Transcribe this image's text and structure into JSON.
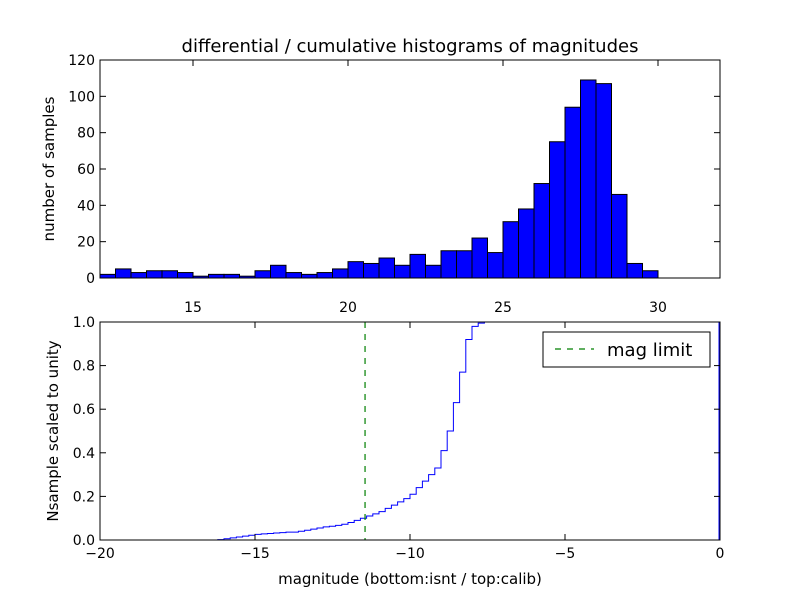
{
  "chart_data": [
    {
      "type": "bar",
      "title": "differential / cumulative histograms of magnitudes",
      "xlabel": "",
      "ylabel": "number of samples",
      "xlim": [
        12.0,
        32.0
      ],
      "ylim": [
        0,
        120
      ],
      "xticks": [
        "15",
        "20",
        "25",
        "30"
      ],
      "yticks": [
        "0",
        "20",
        "40",
        "60",
        "80",
        "100",
        "120"
      ],
      "bar_color": "#0000ff",
      "bin_width": 0.5,
      "bins": [
        12.0,
        12.5,
        13.0,
        13.5,
        14.0,
        14.5,
        15.0,
        15.5,
        16.0,
        16.5,
        17.0,
        17.5,
        18.0,
        18.5,
        19.0,
        19.5,
        20.0,
        20.5,
        21.0,
        21.5,
        22.0,
        22.5,
        23.0,
        23.5,
        24.0,
        24.5,
        25.0,
        25.5,
        26.0,
        26.5,
        27.0,
        27.5,
        28.0,
        28.5,
        29.0,
        29.5,
        30.0,
        30.5,
        31.0,
        31.5
      ],
      "values": [
        2,
        5,
        3,
        4,
        4,
        3,
        1,
        2,
        2,
        1,
        4,
        7,
        3,
        2,
        3,
        5,
        9,
        8,
        11,
        7,
        13,
        7,
        15,
        15,
        22,
        14,
        31,
        38,
        52,
        75,
        94,
        109,
        107,
        46,
        8,
        4,
        0,
        0,
        0,
        0
      ]
    },
    {
      "type": "line",
      "title": "",
      "xlabel": "magnitude (bottom:isnt / top:calib)",
      "ylabel": "Nsample scaled to unity",
      "xlim": [
        -20,
        0
      ],
      "ylim": [
        0.0,
        1.0
      ],
      "xticks": [
        "−20",
        "−15",
        "−10",
        "−5",
        "0"
      ],
      "yticks": [
        "0.0",
        "0.2",
        "0.4",
        "0.6",
        "0.8",
        "1.0"
      ],
      "series": [
        {
          "name": "",
          "color": "#0000ff",
          "drawstyle": "steps",
          "x": [
            -20,
            -17,
            -16.2,
            -16.0,
            -15.8,
            -15.6,
            -15.4,
            -15.2,
            -15.0,
            -14.8,
            -14.6,
            -14.4,
            -14.2,
            -14.0,
            -13.6,
            -13.4,
            -13.2,
            -13.0,
            -12.8,
            -12.6,
            -12.4,
            -12.2,
            -12.0,
            -11.8,
            -11.6,
            -11.4,
            -11.2,
            -11.0,
            -10.8,
            -10.6,
            -10.4,
            -10.2,
            -10.0,
            -9.8,
            -9.6,
            -9.4,
            -9.2,
            -9.0,
            -8.8,
            -8.6,
            -8.4,
            -8.2,
            -8.0,
            -7.8,
            -7.6,
            -7.4,
            0
          ],
          "y": [
            0.0,
            0.0,
            0.002,
            0.006,
            0.01,
            0.014,
            0.018,
            0.022,
            0.026,
            0.028,
            0.03,
            0.032,
            0.034,
            0.036,
            0.04,
            0.045,
            0.05,
            0.055,
            0.06,
            0.063,
            0.067,
            0.072,
            0.08,
            0.09,
            0.1,
            0.11,
            0.12,
            0.13,
            0.145,
            0.16,
            0.175,
            0.19,
            0.21,
            0.24,
            0.27,
            0.3,
            0.33,
            0.41,
            0.5,
            0.63,
            0.77,
            0.92,
            0.98,
            0.995,
            1.0,
            1.0,
            1.0
          ]
        }
      ],
      "vline": {
        "x": -11.45,
        "label": "mag limit",
        "color": "#007f00",
        "style": "dashed"
      },
      "legend": {
        "entries": [
          "mag limit"
        ],
        "placement": "top-right"
      }
    }
  ]
}
